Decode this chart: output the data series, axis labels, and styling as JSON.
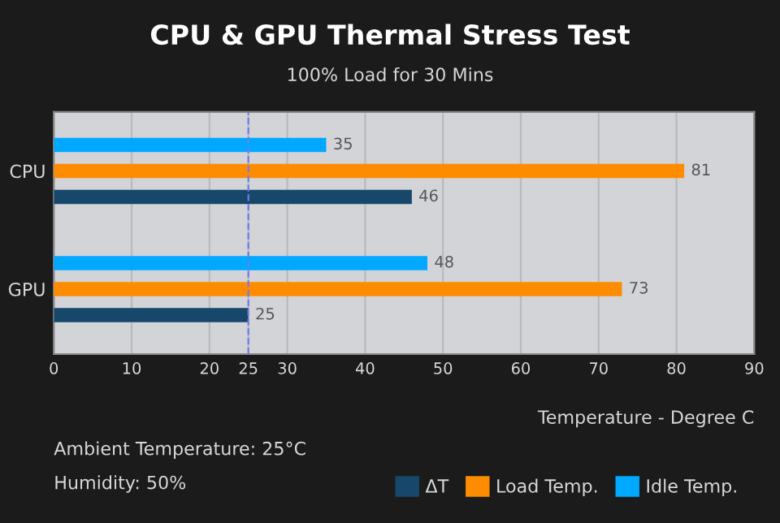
{
  "chart_data": {
    "type": "bar",
    "orientation": "horizontal",
    "title": "CPU & GPU Thermal Stress Test",
    "subtitle": "100% Load for 30 Mins",
    "xlabel": "Temperature - Degree C",
    "categories": [
      "CPU",
      "GPU"
    ],
    "series": [
      {
        "name": "ΔT",
        "color": "#17476b",
        "values": [
          46,
          25
        ]
      },
      {
        "name": "Load Temp.",
        "color": "#ff8c00",
        "values": [
          81,
          73
        ]
      },
      {
        "name": "Idle Temp.",
        "color": "#00a8ff",
        "values": [
          35,
          48
        ]
      }
    ],
    "xlim": [
      0,
      90
    ],
    "xticks": [
      0,
      10,
      20,
      25,
      30,
      40,
      50,
      60,
      70,
      80,
      90
    ],
    "ref_lines": [
      {
        "axis": "x",
        "value": 25,
        "color": "#6f7cf0",
        "line_style": "dashed"
      }
    ],
    "data_labels": true,
    "grid": "x",
    "legend": "bottom right",
    "annotations": [
      "Ambient Temperature: 25°C",
      "Humidity: 50%"
    ]
  }
}
